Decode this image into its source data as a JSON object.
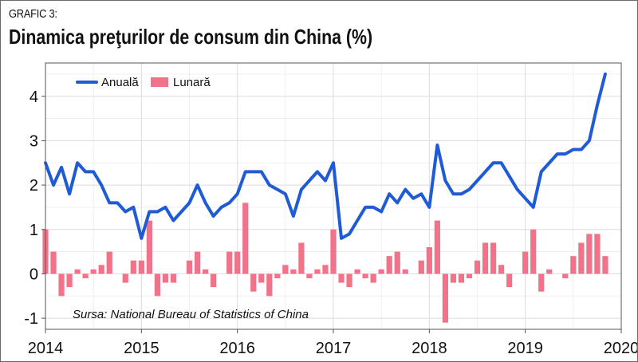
{
  "figure": {
    "kicker": "GRAFIC 3:",
    "title": "Dinamica preţurilor de consum din China (%)"
  },
  "chart_data": {
    "type": "line+bar",
    "title": "Dinamica preţurilor de consum din China (%)",
    "xlabel": "",
    "ylabel": "",
    "xlim": [
      2014,
      2020
    ],
    "ylim": [
      -1.25,
      4.75
    ],
    "x_ticks": [
      2014,
      2015,
      2016,
      2017,
      2018,
      2019,
      2020
    ],
    "y_ticks": [
      -1,
      0,
      1,
      2,
      3,
      4
    ],
    "y_tick_labels": [
      "-1",
      "0",
      "1",
      "2",
      "3",
      "4"
    ],
    "grid": true,
    "legend_position": "top-left",
    "source": "Sursa: National Bureau of Statistics of China",
    "months": [
      "2014-01",
      "2014-02",
      "2014-03",
      "2014-04",
      "2014-05",
      "2014-06",
      "2014-07",
      "2014-08",
      "2014-09",
      "2014-10",
      "2014-11",
      "2014-12",
      "2015-01",
      "2015-02",
      "2015-03",
      "2015-04",
      "2015-05",
      "2015-06",
      "2015-07",
      "2015-08",
      "2015-09",
      "2015-10",
      "2015-11",
      "2015-12",
      "2016-01",
      "2016-02",
      "2016-03",
      "2016-04",
      "2016-05",
      "2016-06",
      "2016-07",
      "2016-08",
      "2016-09",
      "2016-10",
      "2016-11",
      "2016-12",
      "2017-01",
      "2017-02",
      "2017-03",
      "2017-04",
      "2017-05",
      "2017-06",
      "2017-07",
      "2017-08",
      "2017-09",
      "2017-10",
      "2017-11",
      "2017-12",
      "2018-01",
      "2018-02",
      "2018-03",
      "2018-04",
      "2018-05",
      "2018-06",
      "2018-07",
      "2018-08",
      "2018-09",
      "2018-10",
      "2018-11",
      "2018-12",
      "2019-01",
      "2019-02",
      "2019-03",
      "2019-04",
      "2019-05",
      "2019-06",
      "2019-07",
      "2019-08",
      "2019-09",
      "2019-10",
      "2019-11"
    ],
    "series": [
      {
        "name": "Anuală",
        "kind": "line",
        "color": "#1f5bd6",
        "values": [
          2.5,
          2.0,
          2.4,
          1.8,
          2.5,
          2.3,
          2.3,
          2.0,
          1.6,
          1.6,
          1.4,
          1.5,
          0.8,
          1.4,
          1.4,
          1.5,
          1.2,
          1.4,
          1.6,
          2.0,
          1.6,
          1.3,
          1.5,
          1.6,
          1.8,
          2.3,
          2.3,
          2.3,
          2.0,
          1.9,
          1.8,
          1.3,
          1.9,
          2.1,
          2.3,
          2.1,
          2.5,
          0.8,
          0.9,
          1.2,
          1.5,
          1.5,
          1.4,
          1.8,
          1.6,
          1.9,
          1.7,
          1.8,
          1.5,
          2.9,
          2.1,
          1.8,
          1.8,
          1.9,
          2.1,
          2.3,
          2.5,
          2.5,
          2.2,
          1.9,
          1.7,
          1.5,
          2.3,
          2.5,
          2.7,
          2.7,
          2.8,
          2.8,
          3.0,
          3.8,
          4.5
        ]
      },
      {
        "name": "Lunară",
        "kind": "bar",
        "color": "#f2728a",
        "values": [
          1.0,
          0.5,
          -0.5,
          -0.3,
          0.1,
          -0.1,
          0.1,
          0.2,
          0.5,
          0.0,
          -0.2,
          0.3,
          0.3,
          1.2,
          -0.5,
          -0.2,
          -0.2,
          0.0,
          0.3,
          0.5,
          0.1,
          -0.3,
          0.0,
          0.5,
          0.5,
          1.6,
          -0.4,
          -0.2,
          -0.5,
          -0.1,
          0.2,
          0.1,
          0.7,
          -0.1,
          0.1,
          0.2,
          1.0,
          -0.2,
          -0.3,
          0.1,
          -0.1,
          -0.2,
          0.1,
          0.4,
          0.5,
          0.1,
          0.0,
          0.3,
          0.6,
          1.2,
          -1.1,
          -0.2,
          -0.2,
          -0.1,
          0.3,
          0.7,
          0.7,
          0.2,
          -0.3,
          0.0,
          0.5,
          1.0,
          -0.4,
          0.1,
          0.0,
          -0.1,
          0.4,
          0.7,
          0.9,
          0.9,
          0.4
        ]
      }
    ]
  }
}
